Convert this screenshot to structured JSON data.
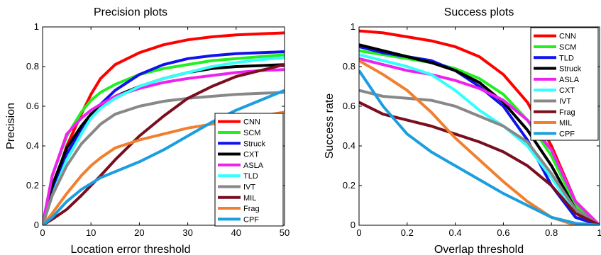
{
  "colors": {
    "CNN": "#ff0000",
    "SCM": "#22ee22",
    "Struck": "#000000",
    "CXT": "#000000",
    "TLD": "#1111ee",
    "ASLA": "#ee22ee",
    "CXT_p": "#000000",
    "TLD_p": "#33ffff",
    "IVT": "#888888",
    "MIL": "#7a0d1f",
    "Frag": "#f08030",
    "CPF": "#1b9ee0"
  },
  "chart_data": [
    {
      "type": "line",
      "title": "Precision plots",
      "xlabel": "Location error threshold",
      "ylabel": "Precision",
      "xlim": [
        0,
        50
      ],
      "ylim": [
        0,
        1
      ],
      "xticks": [
        "0",
        "10",
        "20",
        "30",
        "40",
        "50"
      ],
      "yticks": [
        "0",
        "0.2",
        "0.4",
        "0.6",
        "0.8",
        "1"
      ],
      "legend_position": "bottom-right",
      "series": [
        {
          "name": "CNN",
          "color": "#ff0000",
          "x": [
            0,
            2,
            5,
            8,
            10,
            12,
            15,
            20,
            25,
            30,
            35,
            40,
            45,
            50
          ],
          "y": [
            0,
            0.18,
            0.4,
            0.56,
            0.66,
            0.74,
            0.81,
            0.87,
            0.91,
            0.935,
            0.95,
            0.96,
            0.965,
            0.97
          ]
        },
        {
          "name": "SCM",
          "color": "#22ee22",
          "x": [
            0,
            2,
            5,
            8,
            10,
            12,
            15,
            20,
            25,
            30,
            35,
            40,
            45,
            50
          ],
          "y": [
            0,
            0.25,
            0.45,
            0.57,
            0.63,
            0.67,
            0.71,
            0.76,
            0.79,
            0.81,
            0.83,
            0.84,
            0.85,
            0.86
          ]
        },
        {
          "name": "Struck",
          "color": "#1111ee",
          "x": [
            0,
            2,
            5,
            8,
            10,
            12,
            15,
            20,
            25,
            30,
            35,
            40,
            45,
            50
          ],
          "y": [
            0,
            0.18,
            0.36,
            0.48,
            0.55,
            0.61,
            0.68,
            0.76,
            0.81,
            0.84,
            0.855,
            0.865,
            0.87,
            0.875
          ]
        },
        {
          "name": "CXT",
          "color": "#000000",
          "x": [
            0,
            2,
            5,
            8,
            10,
            12,
            15,
            20,
            25,
            30,
            35,
            40,
            45,
            50
          ],
          "y": [
            0,
            0.2,
            0.39,
            0.5,
            0.56,
            0.6,
            0.65,
            0.7,
            0.74,
            0.77,
            0.79,
            0.8,
            0.805,
            0.81
          ]
        },
        {
          "name": "ASLA",
          "color": "#ee22ee",
          "x": [
            0,
            2,
            5,
            8,
            10,
            12,
            15,
            20,
            25,
            30,
            35,
            40,
            45,
            50
          ],
          "y": [
            0,
            0.25,
            0.46,
            0.54,
            0.58,
            0.61,
            0.65,
            0.69,
            0.72,
            0.74,
            0.755,
            0.77,
            0.78,
            0.785
          ]
        },
        {
          "name": "TLD",
          "color": "#33ffff",
          "x": [
            0,
            2,
            5,
            8,
            10,
            12,
            15,
            20,
            25,
            30,
            35,
            40,
            45,
            50
          ],
          "y": [
            0,
            0.15,
            0.33,
            0.46,
            0.54,
            0.59,
            0.64,
            0.7,
            0.74,
            0.77,
            0.8,
            0.82,
            0.835,
            0.845
          ]
        },
        {
          "name": "IVT",
          "color": "#888888",
          "x": [
            0,
            2,
            5,
            8,
            10,
            12,
            15,
            20,
            25,
            30,
            35,
            40,
            45,
            50
          ],
          "y": [
            0,
            0.15,
            0.3,
            0.41,
            0.46,
            0.51,
            0.56,
            0.6,
            0.625,
            0.64,
            0.65,
            0.66,
            0.665,
            0.67
          ]
        },
        {
          "name": "MIL",
          "color": "#7a0d1f",
          "x": [
            0,
            2,
            5,
            8,
            10,
            12,
            15,
            20,
            25,
            30,
            35,
            40,
            45,
            50
          ],
          "y": [
            0,
            0.03,
            0.08,
            0.15,
            0.2,
            0.25,
            0.33,
            0.45,
            0.55,
            0.64,
            0.7,
            0.75,
            0.78,
            0.81
          ]
        },
        {
          "name": "Frag",
          "color": "#f08030",
          "x": [
            0,
            2,
            5,
            8,
            10,
            12,
            15,
            20,
            25,
            30,
            35,
            40,
            45,
            50
          ],
          "y": [
            0,
            0.06,
            0.16,
            0.25,
            0.3,
            0.34,
            0.39,
            0.43,
            0.46,
            0.49,
            0.51,
            0.53,
            0.55,
            0.57
          ]
        },
        {
          "name": "CPF",
          "color": "#1b9ee0",
          "x": [
            0,
            2,
            5,
            8,
            10,
            12,
            15,
            20,
            25,
            30,
            35,
            40,
            45,
            50
          ],
          "y": [
            0,
            0.04,
            0.12,
            0.18,
            0.21,
            0.24,
            0.27,
            0.32,
            0.38,
            0.45,
            0.52,
            0.58,
            0.63,
            0.68
          ]
        }
      ]
    },
    {
      "type": "line",
      "title": "Success plots",
      "xlabel": "Overlap threshold",
      "ylabel": "Success rate",
      "xlim": [
        0,
        1
      ],
      "ylim": [
        0,
        1
      ],
      "xticks": [
        "0",
        "0.2",
        "0.4",
        "0.6",
        "0.8",
        "1"
      ],
      "yticks": [
        "0",
        "0.2",
        "0.4",
        "0.6",
        "0.8",
        "1"
      ],
      "legend_position": "top-right",
      "series": [
        {
          "name": "CNN",
          "color": "#ff0000",
          "x": [
            0,
            0.1,
            0.2,
            0.3,
            0.4,
            0.5,
            0.6,
            0.7,
            0.8,
            0.9,
            1
          ],
          "y": [
            0.98,
            0.97,
            0.95,
            0.93,
            0.9,
            0.85,
            0.76,
            0.62,
            0.4,
            0.12,
            0
          ]
        },
        {
          "name": "SCM",
          "color": "#22ee22",
          "x": [
            0,
            0.1,
            0.2,
            0.3,
            0.4,
            0.5,
            0.6,
            0.7,
            0.8,
            0.9,
            1
          ],
          "y": [
            0.88,
            0.86,
            0.84,
            0.82,
            0.79,
            0.74,
            0.66,
            0.53,
            0.35,
            0.1,
            0
          ]
        },
        {
          "name": "TLD",
          "color": "#1111ee",
          "x": [
            0,
            0.1,
            0.2,
            0.3,
            0.4,
            0.5,
            0.6,
            0.7,
            0.8,
            0.9,
            1
          ],
          "y": [
            0.9,
            0.87,
            0.85,
            0.83,
            0.78,
            0.7,
            0.6,
            0.43,
            0.2,
            0.04,
            0
          ]
        },
        {
          "name": "Struck",
          "color": "#000000",
          "x": [
            0,
            0.1,
            0.2,
            0.3,
            0.4,
            0.5,
            0.6,
            0.7,
            0.8,
            0.9,
            1
          ],
          "y": [
            0.91,
            0.88,
            0.85,
            0.82,
            0.78,
            0.72,
            0.62,
            0.48,
            0.3,
            0.08,
            0
          ]
        },
        {
          "name": "ASLA",
          "color": "#ee22ee",
          "x": [
            0,
            0.1,
            0.2,
            0.3,
            0.4,
            0.5,
            0.6,
            0.7,
            0.8,
            0.9,
            1
          ],
          "y": [
            0.84,
            0.81,
            0.78,
            0.76,
            0.73,
            0.69,
            0.63,
            0.53,
            0.38,
            0.12,
            0
          ]
        },
        {
          "name": "CXT",
          "color": "#33ffff",
          "x": [
            0,
            0.1,
            0.2,
            0.3,
            0.4,
            0.5,
            0.6,
            0.7,
            0.8,
            0.9,
            1
          ],
          "y": [
            0.86,
            0.83,
            0.8,
            0.76,
            0.68,
            0.58,
            0.5,
            0.4,
            0.24,
            0.06,
            0
          ]
        },
        {
          "name": "IVT",
          "color": "#888888",
          "x": [
            0,
            0.1,
            0.2,
            0.3,
            0.4,
            0.5,
            0.6,
            0.7,
            0.8,
            0.9,
            1
          ],
          "y": [
            0.68,
            0.65,
            0.64,
            0.63,
            0.6,
            0.55,
            0.5,
            0.42,
            0.26,
            0.08,
            0
          ]
        },
        {
          "name": "Frag",
          "color": "#7a0d1f",
          "x": [
            0,
            0.1,
            0.2,
            0.3,
            0.4,
            0.5,
            0.6,
            0.7,
            0.8,
            0.9,
            1
          ],
          "y": [
            0.62,
            0.56,
            0.53,
            0.5,
            0.46,
            0.42,
            0.37,
            0.3,
            0.2,
            0.06,
            0
          ]
        },
        {
          "name": "MIL",
          "color": "#f08030",
          "x": [
            0,
            0.1,
            0.2,
            0.3,
            0.4,
            0.5,
            0.6,
            0.7,
            0.8,
            0.9,
            1
          ],
          "y": [
            0.83,
            0.76,
            0.68,
            0.57,
            0.44,
            0.33,
            0.22,
            0.12,
            0.04,
            0,
            0
          ]
        },
        {
          "name": "CPF",
          "color": "#1b9ee0",
          "x": [
            0,
            0.1,
            0.2,
            0.3,
            0.4,
            0.5,
            0.6,
            0.7,
            0.8,
            0.9,
            1
          ],
          "y": [
            0.78,
            0.6,
            0.46,
            0.37,
            0.3,
            0.23,
            0.16,
            0.1,
            0.04,
            0.01,
            0
          ]
        }
      ]
    }
  ]
}
